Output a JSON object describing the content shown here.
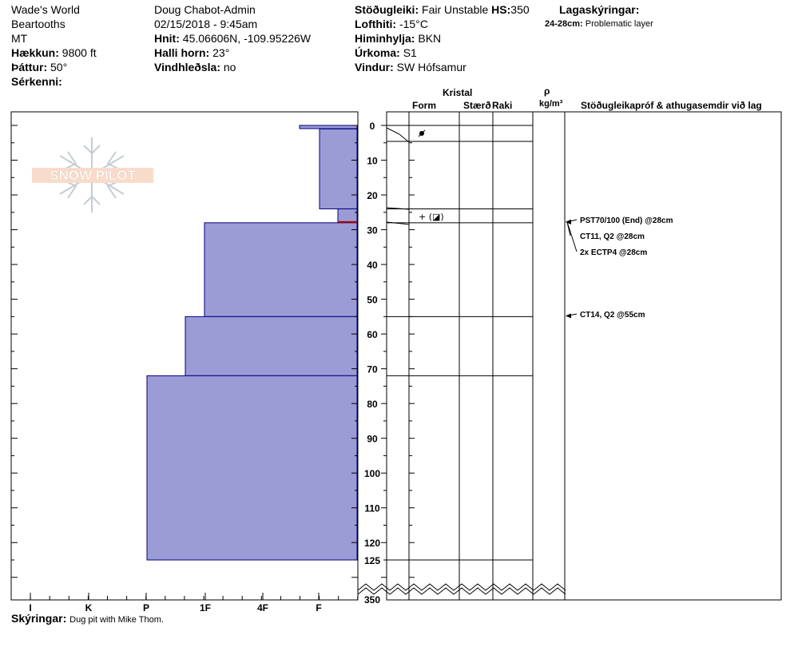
{
  "header": {
    "col1": {
      "location": "Wade's World",
      "range": "Beartooths",
      "state": "MT",
      "elevation_label": "Hækkun:",
      "elevation": "9800 ft",
      "aspect_label": "Þáttur:",
      "aspect": "50°",
      "specifics_label": "Sérkenni:"
    },
    "col2": {
      "observer": "Doug Chabot-Admin",
      "datetime": "02/15/2018 - 9:45am",
      "coords_label": "Hnit:",
      "coords": "45.06606N, -109.95226W",
      "slope_label": "Halli horn:",
      "slope": "23°",
      "wind_loading_label": "Vindhleðsla:",
      "wind_loading": "no"
    },
    "col3": {
      "stability_label": "Stöðugleiki:",
      "stability": "Fair Unstable",
      "hs_label": "HS:",
      "hs": "350",
      "air_temp_label": "Lofthiti:",
      "air_temp": "-15°C",
      "sky_label": "Himinhylja:",
      "sky": "BKN",
      "precip_label": "Úrkoma:",
      "precip": "S1",
      "wind_label": "Vindur:",
      "wind": "SW Hófsamur"
    },
    "col4": {
      "layers_label": "Lagaskýringar:",
      "layer_range": "24-28cm:",
      "layer_desc": "Problematic layer"
    }
  },
  "columns": {
    "crystal": "Kristal",
    "form": "Form",
    "size": "Stærð",
    "moisture": "Raki",
    "rho": "ρ",
    "density_unit": "kg/m³",
    "tests": "Stöðugleikapróf & athugasemdir við lag"
  },
  "watermark": "SNOW PILOT",
  "footer": {
    "comments_label": "Skýringar:",
    "comments": "Dug pit with Mike Thom."
  },
  "chart_data": {
    "type": "bar",
    "orientation": "horizontal",
    "description_axis": "depth (cm, from surface)",
    "depth_ticks": [
      "0",
      "10",
      "20",
      "30",
      "40",
      "50",
      "60",
      "70",
      "80",
      "90",
      "100",
      "110",
      "120",
      "125",
      "350"
    ],
    "hardness_ticks": [
      "I",
      "K",
      "P",
      "1F",
      "4F",
      "F"
    ],
    "layers": [
      {
        "top": 0,
        "bottom": 1,
        "hardness_px_ref": "F+"
      },
      {
        "top": 1,
        "bottom": 24,
        "hardness_px_ref": "F"
      },
      {
        "top": 24,
        "bottom": 28,
        "hardness_px_ref": "F-"
      },
      {
        "top": 28,
        "bottom": 55,
        "hardness_px_ref": "1F"
      },
      {
        "top": 55,
        "bottom": 72,
        "hardness_px_ref": "1F-"
      },
      {
        "top": 72,
        "bottom": 125,
        "hardness_px_ref": "P"
      }
    ],
    "layer_lines": [
      0,
      5,
      24,
      28,
      55,
      72,
      125
    ],
    "grain_symbols": [
      {
        "depth": 2.5,
        "label": "●"
      },
      {
        "depth": 26,
        "label": "+ (◪)"
      }
    ],
    "tests": [
      {
        "label": "PST70/100 (End) @28cm",
        "depth": 28
      },
      {
        "label": "CT11, Q2 @28cm",
        "depth": 28
      },
      {
        "label": "2x ECTP4 @28cm",
        "depth": 28
      },
      {
        "label": "CT14, Q2 @55cm",
        "depth": 55
      }
    ],
    "fill_color": "#9b9bd6",
    "edge_color": "#00007f",
    "problem_layer_color": "#b30000"
  }
}
